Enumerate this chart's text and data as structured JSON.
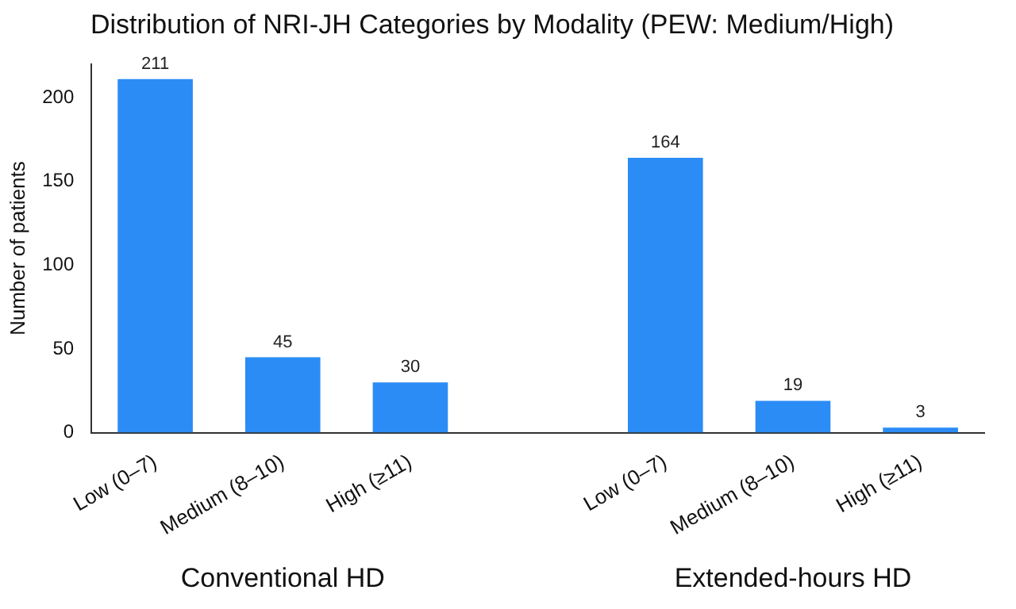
{
  "chart_data": {
    "type": "bar",
    "title": "Distribution of NRI-JH Categories by Modality (PEW: Medium/High)",
    "ylabel": "Number of patients",
    "categories": [
      "Low (0–7)",
      "Medium (8–10)",
      "High (≥11)",
      null,
      "Low (0–7)",
      "Medium (8–10)",
      "High (≥11)"
    ],
    "values": [
      211,
      45,
      30,
      null,
      164,
      19,
      3
    ],
    "color": "#2b8cf6",
    "ylim": [
      0,
      220
    ],
    "yticks": [
      0,
      50,
      100,
      150,
      200
    ],
    "grid": false,
    "legend": false,
    "data_labels": true,
    "annotations": [
      "Conventional HD",
      "Extended-hours HD"
    ]
  }
}
